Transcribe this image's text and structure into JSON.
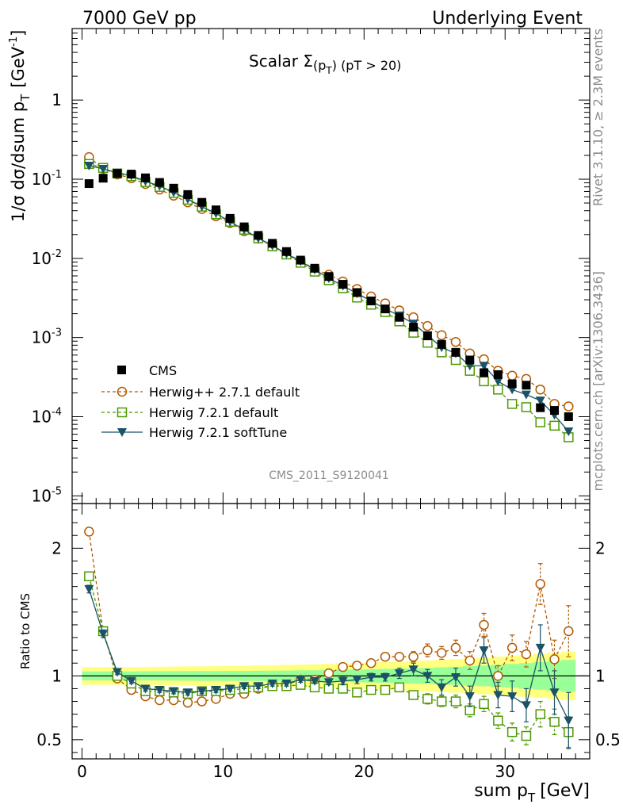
{
  "header": {
    "left": "7000 GeV pp",
    "right": "Underlying Event"
  },
  "side": {
    "rivet": "Rivet 3.1.10, ≥ 2.3M events",
    "mcplots": "mcplots.cern.ch [arXiv:1306.3436]"
  },
  "chart_data": [
    {
      "type": "scatter",
      "title": "Scalar Σ(p_T) (pT > 20)",
      "title_main": "Scalar Σ",
      "title_p": "(p",
      "title_sub": "T",
      "title_rest": ") (pT > 20)",
      "watermark": "CMS_2011_S9120041",
      "ylabel": "1/σ dσ/dsum p_T [GeV^-1]",
      "ylabel_main": "1/σ dσ/dsum p",
      "ylabel_sub": "T",
      "ylabel_unit": "[GeV",
      "ylabel_sup": "-1",
      "ylabel_close": "]",
      "yscale": "log",
      "ylim": [
        8e-06,
        8
      ],
      "xlim": [
        -0.7,
        36
      ],
      "ytick_labels": [
        "10",
        "10",
        "10",
        "10",
        "10",
        "1"
      ],
      "ytick_sups": [
        "-5",
        "-4",
        "-3",
        "-2",
        "-1",
        ""
      ],
      "x": [
        0.5,
        1.5,
        2.5,
        3.5,
        4.5,
        5.5,
        6.5,
        7.5,
        8.5,
        9.5,
        10.5,
        11.5,
        12.5,
        13.5,
        14.5,
        15.5,
        16.5,
        17.5,
        18.5,
        19.5,
        20.5,
        21.5,
        22.5,
        23.5,
        24.5,
        25.5,
        26.5,
        27.5,
        28.5,
        29.5,
        30.5,
        31.5,
        32.5,
        33.5,
        34.5
      ],
      "series": [
        {
          "name": "CMS",
          "values": [
            0.088,
            0.103,
            0.118,
            0.116,
            0.104,
            0.091,
            0.077,
            0.064,
            0.051,
            0.041,
            0.032,
            0.025,
            0.0195,
            0.0155,
            0.0122,
            0.0095,
            0.0075,
            0.0059,
            0.0047,
            0.0037,
            0.0029,
            0.0023,
            0.0018,
            0.00135,
            0.00105,
            0.00082,
            0.00065,
            0.00052,
            0.00036,
            0.00034,
            0.00026,
            0.00025,
            0.00013,
            0.00012,
            0.0001
          ]
        },
        {
          "name": "Herwig++ 2.7.1 default",
          "values": [
            0.19,
            0.136,
            0.115,
            0.103,
            0.087,
            0.074,
            0.062,
            0.051,
            0.042,
            0.034,
            0.028,
            0.022,
            0.0178,
            0.0145,
            0.0115,
            0.0093,
            0.0073,
            0.0062,
            0.0051,
            0.0041,
            0.0033,
            0.0027,
            0.0022,
            0.0018,
            0.0014,
            0.00107,
            0.00088,
            0.00063,
            0.00053,
            0.00038,
            0.00033,
            0.0003,
            0.00022,
            0.000145,
            0.000135
          ]
        },
        {
          "name": "Herwig 7.2.1 default",
          "values": [
            0.156,
            0.139,
            0.118,
            0.109,
            0.092,
            0.08,
            0.067,
            0.055,
            0.045,
            0.036,
            0.029,
            0.023,
            0.0179,
            0.0142,
            0.0112,
            0.0088,
            0.0068,
            0.0053,
            0.0042,
            0.0032,
            0.0026,
            0.0021,
            0.0016,
            0.00115,
            0.00086,
            0.00065,
            0.00052,
            0.00038,
            0.00028,
            0.00022,
            0.000145,
            0.000132,
            8.5e-05,
            7.7e-05,
            5.5e-05
          ]
        },
        {
          "name": "Herwig 7.2.1 softTune",
          "values": [
            0.148,
            0.135,
            0.121,
            0.111,
            0.094,
            0.082,
            0.068,
            0.056,
            0.045,
            0.037,
            0.029,
            0.023,
            0.018,
            0.0145,
            0.0114,
            0.0092,
            0.0072,
            0.0056,
            0.0045,
            0.0036,
            0.0029,
            0.0023,
            0.0019,
            0.0015,
            0.00107,
            0.00075,
            0.00063,
            0.00044,
            0.00044,
            0.00028,
            0.00022,
            0.00019,
            0.00016,
            0.000105,
            6.5e-05
          ]
        }
      ],
      "legend": [
        "CMS",
        "Herwig++ 2.7.1 default",
        "Herwig 7.2.1 default",
        "Herwig 7.2.1 softTune"
      ],
      "legend_placement": "lower-left",
      "colors": {
        "CMS": "#000000",
        "Herwig++ 2.7.1 default": "#b35900",
        "Herwig 7.2.1 default": "#4d9900",
        "Herwig 7.2.1 softTune": "#1a5266"
      }
    },
    {
      "type": "line",
      "ylabel": "Ratio to CMS",
      "xlabel": "sum p_T [GeV]",
      "xlabel_main": "sum p",
      "xlabel_sub": "T",
      "xlabel_unit": "[GeV]",
      "ylim": [
        0.35,
        2.35
      ],
      "xlim": [
        -0.7,
        36
      ],
      "yticks": [
        0.5,
        1,
        2
      ],
      "ytick_labels": [
        "0.5",
        "1",
        "2"
      ],
      "xticks": [
        0,
        10,
        20,
        30
      ],
      "xtick_labels": [
        "0",
        "10",
        "20",
        "30"
      ],
      "x": [
        0.5,
        1.5,
        2.5,
        3.5,
        4.5,
        5.5,
        6.5,
        7.5,
        8.5,
        9.5,
        10.5,
        11.5,
        12.5,
        13.5,
        14.5,
        15.5,
        16.5,
        17.5,
        18.5,
        19.5,
        20.5,
        21.5,
        22.5,
        23.5,
        24.5,
        25.5,
        26.5,
        27.5,
        28.5,
        29.5,
        30.5,
        31.5,
        32.5,
        33.5,
        34.5
      ],
      "band_stat_half": [
        0.035,
        0.035,
        0.035,
        0.035,
        0.036,
        0.036,
        0.037,
        0.037,
        0.038,
        0.038,
        0.039,
        0.039,
        0.04,
        0.041,
        0.042,
        0.043,
        0.044,
        0.046,
        0.048,
        0.05,
        0.052,
        0.054,
        0.057,
        0.06,
        0.063,
        0.067,
        0.071,
        0.076,
        0.081,
        0.087,
        0.093,
        0.1,
        0.108,
        0.116,
        0.125
      ],
      "band_total_half": [
        0.07,
        0.07,
        0.07,
        0.07,
        0.071,
        0.072,
        0.073,
        0.074,
        0.075,
        0.076,
        0.078,
        0.08,
        0.082,
        0.084,
        0.086,
        0.088,
        0.091,
        0.094,
        0.097,
        0.1,
        0.104,
        0.108,
        0.112,
        0.116,
        0.121,
        0.126,
        0.131,
        0.137,
        0.143,
        0.15,
        0.157,
        0.164,
        0.172,
        0.18,
        0.19
      ],
      "band_colors": {
        "stat": "#99ff99",
        "total": "#ffff80"
      },
      "series": [
        {
          "name": "Herwig++ 2.7.1 default",
          "values": [
            2.13,
            1.35,
            0.98,
            0.89,
            0.84,
            0.81,
            0.81,
            0.79,
            0.8,
            0.82,
            0.86,
            0.86,
            0.9,
            0.92,
            0.93,
            0.97,
            0.97,
            1.02,
            1.07,
            1.08,
            1.1,
            1.15,
            1.15,
            1.15,
            1.2,
            1.18,
            1.22,
            1.12,
            1.4,
            1.0,
            1.22,
            1.17,
            1.72,
            1.13,
            1.35
          ],
          "err": [
            0.03,
            0.03,
            0.02,
            0.02,
            0.02,
            0.02,
            0.02,
            0.02,
            0.02,
            0.02,
            0.02,
            0.02,
            0.02,
            0.02,
            0.02,
            0.02,
            0.02,
            0.02,
            0.03,
            0.03,
            0.03,
            0.03,
            0.03,
            0.04,
            0.05,
            0.05,
            0.06,
            0.07,
            0.09,
            0.08,
            0.1,
            0.1,
            0.16,
            0.15,
            0.2
          ]
        },
        {
          "name": "Herwig 7.2.1 default",
          "values": [
            1.78,
            1.35,
            1.0,
            0.94,
            0.88,
            0.88,
            0.87,
            0.86,
            0.88,
            0.88,
            0.89,
            0.9,
            0.91,
            0.92,
            0.92,
            0.93,
            0.91,
            0.9,
            0.9,
            0.87,
            0.89,
            0.89,
            0.91,
            0.85,
            0.82,
            0.8,
            0.8,
            0.73,
            0.78,
            0.65,
            0.56,
            0.53,
            0.7,
            0.64,
            0.56
          ],
          "err": [
            0.03,
            0.03,
            0.02,
            0.02,
            0.02,
            0.02,
            0.02,
            0.02,
            0.02,
            0.02,
            0.02,
            0.02,
            0.02,
            0.02,
            0.02,
            0.02,
            0.02,
            0.02,
            0.02,
            0.02,
            0.03,
            0.03,
            0.03,
            0.03,
            0.04,
            0.04,
            0.05,
            0.05,
            0.06,
            0.06,
            0.07,
            0.07,
            0.1,
            0.1,
            0.12
          ]
        },
        {
          "name": "Herwig 7.2.1 softTune",
          "values": [
            1.68,
            1.33,
            1.03,
            0.96,
            0.9,
            0.89,
            0.88,
            0.87,
            0.88,
            0.89,
            0.9,
            0.92,
            0.92,
            0.94,
            0.94,
            0.97,
            0.96,
            0.95,
            0.96,
            0.97,
            0.99,
            0.99,
            1.02,
            1.05,
            1.0,
            0.91,
            0.99,
            0.84,
            1.2,
            0.85,
            0.84,
            0.77,
            1.22,
            0.87,
            0.65
          ],
          "err": [
            0.03,
            0.03,
            0.02,
            0.02,
            0.02,
            0.02,
            0.02,
            0.02,
            0.02,
            0.02,
            0.02,
            0.02,
            0.02,
            0.02,
            0.02,
            0.02,
            0.02,
            0.02,
            0.03,
            0.03,
            0.03,
            0.03,
            0.04,
            0.05,
            0.05,
            0.06,
            0.07,
            0.08,
            0.1,
            0.1,
            0.12,
            0.13,
            0.18,
            0.17,
            0.22
          ]
        }
      ]
    }
  ]
}
